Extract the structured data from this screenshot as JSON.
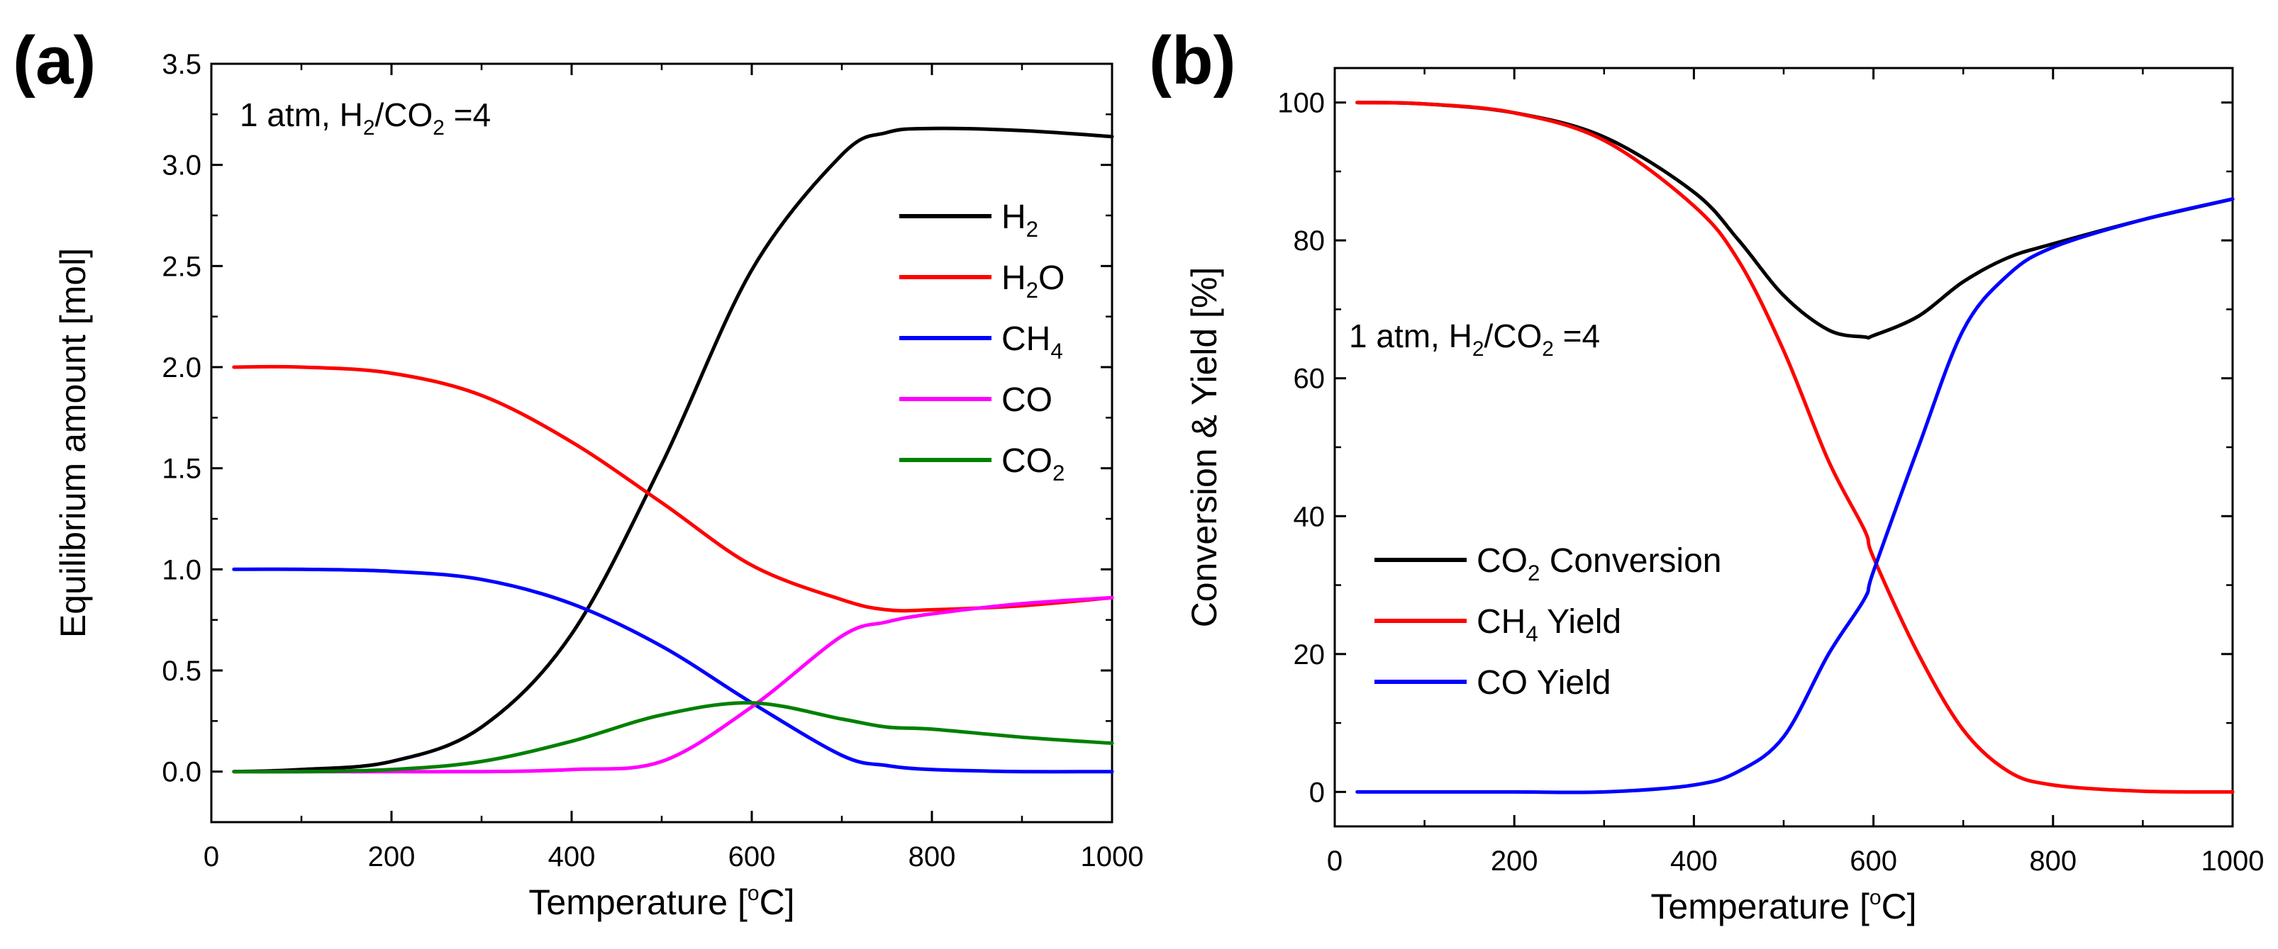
{
  "chart_data": [
    {
      "panel_label": "(a)",
      "type": "line",
      "xlabel": "Temperature [°C]",
      "ylabel": "Equilibrium amount [mol]",
      "xlim": [
        0,
        1000
      ],
      "ylim": [
        -0.25,
        3.5
      ],
      "xticks": [
        0,
        200,
        400,
        600,
        800,
        1000
      ],
      "yticks": [
        0.0,
        0.5,
        1.0,
        1.5,
        2.0,
        2.5,
        3.0,
        3.5
      ],
      "annotation": "1 atm, H2/CO2 =4",
      "legend_position": "right",
      "x": [
        25,
        100,
        200,
        300,
        400,
        500,
        600,
        700,
        750,
        800,
        900,
        1000
      ],
      "series": [
        {
          "name": "H2",
          "color": "#000000",
          "values": [
            0.0,
            0.01,
            0.05,
            0.22,
            0.68,
            1.52,
            2.48,
            3.05,
            3.16,
            3.18,
            3.17,
            3.14
          ]
        },
        {
          "name": "H2O",
          "color": "#ff0000",
          "values": [
            2.0,
            2.0,
            1.97,
            1.86,
            1.63,
            1.33,
            1.02,
            0.85,
            0.8,
            0.8,
            0.82,
            0.86
          ]
        },
        {
          "name": "CH4",
          "color": "#0000ff",
          "values": [
            1.0,
            1.0,
            0.99,
            0.95,
            0.83,
            0.62,
            0.34,
            0.08,
            0.03,
            0.01,
            0.0,
            0.0
          ]
        },
        {
          "name": "CO",
          "color": "#ff00ff",
          "values": [
            0.0,
            0.0,
            0.0,
            0.0,
            0.01,
            0.05,
            0.32,
            0.67,
            0.74,
            0.78,
            0.83,
            0.86
          ]
        },
        {
          "name": "CO2",
          "color": "#008000",
          "values": [
            0.0,
            0.0,
            0.01,
            0.05,
            0.15,
            0.28,
            0.34,
            0.26,
            0.22,
            0.21,
            0.17,
            0.14
          ]
        }
      ]
    },
    {
      "panel_label": "(b)",
      "type": "line",
      "xlabel": "Temperature [°C]",
      "ylabel": "Conversion & Yield [%]",
      "xlim": [
        0,
        1000
      ],
      "ylim": [
        -5,
        105
      ],
      "xticks": [
        0,
        200,
        400,
        600,
        800,
        1000
      ],
      "yticks": [
        0,
        20,
        40,
        60,
        80,
        100
      ],
      "annotation": "1 atm, H2/CO2 =4",
      "legend_position": "lower-left",
      "x": [
        25,
        100,
        200,
        300,
        400,
        450,
        500,
        550,
        590,
        600,
        650,
        700,
        750,
        800,
        900,
        1000
      ],
      "series": [
        {
          "name": "CO2 Conversion",
          "color": "#000000",
          "values": [
            100,
            99.8,
            98.5,
            95,
            87,
            80,
            72,
            67,
            66,
            66.2,
            69,
            74,
            77.5,
            79.5,
            83,
            86
          ]
        },
        {
          "name": "CH4 Yield",
          "color": "#ff0000",
          "values": [
            100,
            99.8,
            98.5,
            94.5,
            85,
            77,
            64,
            48,
            38,
            34,
            20,
            9,
            3,
            1,
            0.1,
            0
          ]
        },
        {
          "name": "CO Yield",
          "color": "#0000ff",
          "values": [
            0,
            0,
            0,
            0,
            1,
            3,
            8,
            20,
            28,
            32,
            50,
            67,
            75,
            79,
            83,
            86
          ]
        }
      ]
    }
  ]
}
